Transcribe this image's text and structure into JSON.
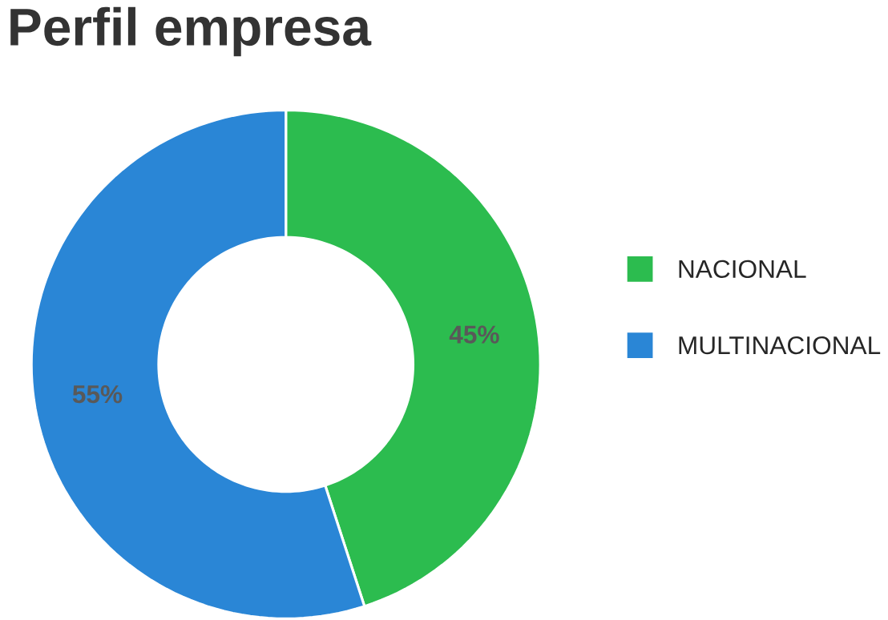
{
  "chart_data": {
    "type": "donut",
    "title": "Perfil empresa",
    "categories": [
      "NACIONAL",
      "MULTINACIONAL"
    ],
    "values": [
      45,
      55
    ],
    "colors": [
      "#2cbc4f",
      "#2a86d6"
    ],
    "value_labels": [
      "45%",
      "55%"
    ],
    "legend": "right"
  }
}
